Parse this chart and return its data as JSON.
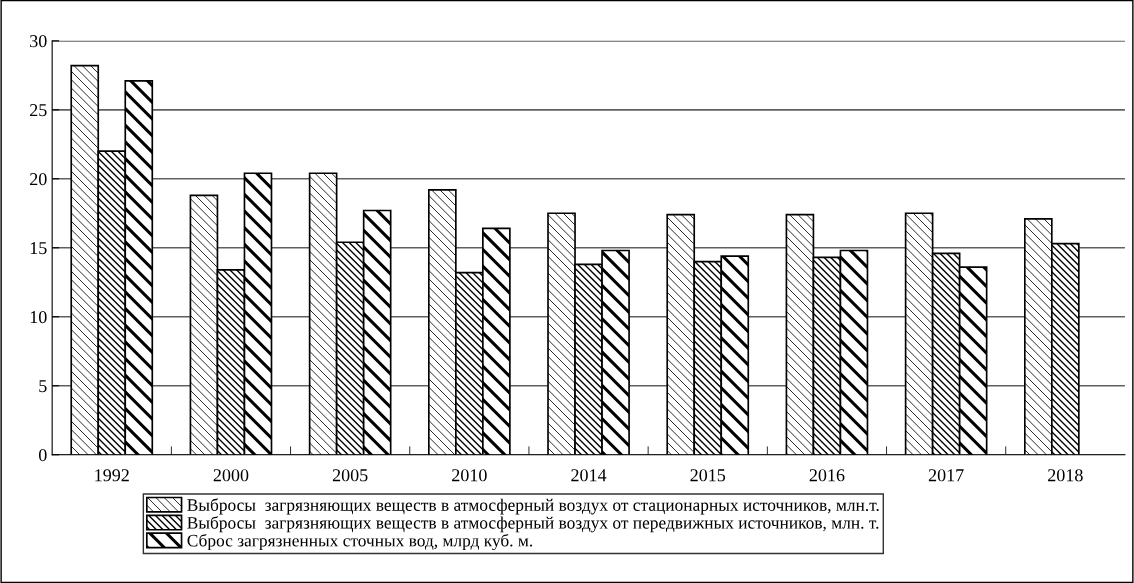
{
  "chart_data": {
    "type": "bar",
    "categories": [
      "1992",
      "2000",
      "2005",
      "2010",
      "2014",
      "2015",
      "2016",
      "2017",
      "2018"
    ],
    "series": [
      {
        "name": "Выбросы  загрязняющих веществ в атмосферный воздух от стационарных источников, млн.т.",
        "color": "#000000",
        "values": [
          28.2,
          18.8,
          20.4,
          19.2,
          17.5,
          17.4,
          17.4,
          17.5,
          17.1
        ]
      },
      {
        "name": "Выбросы  загрязняющих веществ в атмосферный воздух от передвижных источников, млн. т.",
        "color": "#000000",
        "values": [
          22.0,
          13.4,
          15.4,
          13.2,
          13.8,
          14.0,
          14.3,
          14.6,
          15.3
        ]
      },
      {
        "name": "Сброс загрязненных сточных вод, млрд куб. м.",
        "color": "#000000",
        "values": [
          27.1,
          20.4,
          17.7,
          16.4,
          14.8,
          14.4,
          14.8,
          13.6,
          null
        ]
      }
    ],
    "ylim": [
      0,
      30
    ],
    "yticks": [
      0,
      5,
      10,
      15,
      20,
      25,
      30
    ],
    "grid": "y",
    "legend": "bottom"
  }
}
